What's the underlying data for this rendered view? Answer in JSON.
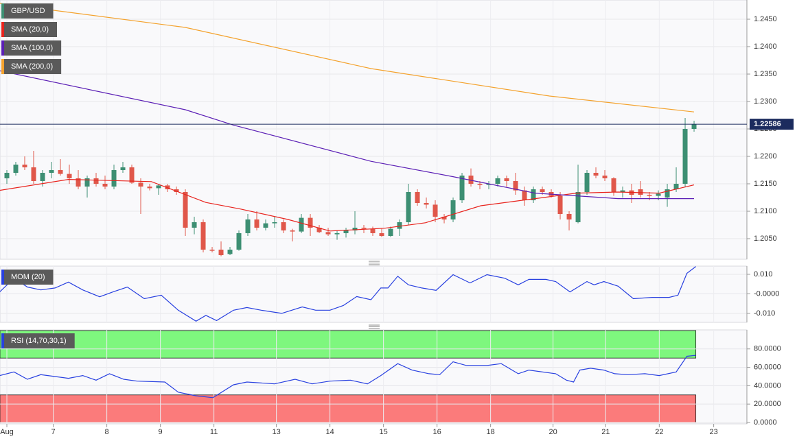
{
  "chart_data": [
    {
      "type": "candlestick",
      "name": "GBP/USD",
      "up_color": "#3d8f73",
      "down_color": "#e0574a",
      "xlim": [
        -0.77,
        82.92
      ],
      "ylim": [
        1.20125,
        1.2485
      ],
      "yticks": [
        {
          "value": 1.205,
          "label": "1.2050"
        },
        {
          "value": 1.21,
          "label": "1.2100"
        },
        {
          "value": 1.215,
          "label": "1.2150"
        },
        {
          "value": 1.22,
          "label": "1.2200"
        },
        {
          "value": 1.225,
          "label": "1.2250"
        },
        {
          "value": 1.23,
          "label": "1.2300"
        },
        {
          "value": 1.235,
          "label": "1.2350"
        },
        {
          "value": 1.24,
          "label": "1.2400"
        },
        {
          "value": 1.245,
          "label": "1.2450"
        }
      ],
      "grid": true,
      "last_price": 1.22586,
      "last_price_color": "#1b2b5e",
      "candles": [
        [
          1.216,
          1.2175,
          1.215,
          1.217
        ],
        [
          1.217,
          1.219,
          1.2165,
          1.2185
        ],
        [
          1.2185,
          1.22,
          1.2175,
          1.218
        ],
        [
          1.218,
          1.221,
          1.215,
          1.2155
        ],
        [
          1.2155,
          1.2175,
          1.2145,
          1.217
        ],
        [
          1.217,
          1.219,
          1.216,
          1.2175
        ],
        [
          1.2175,
          1.2195,
          1.2165,
          1.2168
        ],
        [
          1.2168,
          1.2185,
          1.215,
          1.216
        ],
        [
          1.216,
          1.2175,
          1.214,
          1.2145
        ],
        [
          1.2145,
          1.2165,
          1.2125,
          1.216
        ],
        [
          1.216,
          1.217,
          1.2145,
          1.215
        ],
        [
          1.215,
          1.2165,
          1.214,
          1.2145
        ],
        [
          1.2145,
          1.2185,
          1.214,
          1.2175
        ],
        [
          1.2175,
          1.219,
          1.217,
          1.218
        ],
        [
          1.218,
          1.2185,
          1.215,
          1.2152
        ],
        [
          1.2152,
          1.216,
          1.2095,
          1.2145
        ],
        [
          1.2145,
          1.215,
          1.2138,
          1.2142
        ],
        [
          1.2142,
          1.215,
          1.213,
          1.2147
        ],
        [
          1.2147,
          1.215,
          1.2135,
          1.214
        ],
        [
          1.214,
          1.2145,
          1.213,
          1.2135
        ],
        [
          1.2135,
          1.214,
          1.2055,
          1.207
        ],
        [
          1.207,
          1.209,
          1.2058,
          1.208
        ],
        [
          1.208,
          1.2085,
          1.2025,
          1.203
        ],
        [
          1.203,
          1.2035,
          1.2025,
          1.2028
        ],
        [
          1.203,
          1.2045,
          1.2018,
          1.202
        ],
        [
          1.2022,
          1.2035,
          1.202,
          1.203
        ],
        [
          1.203,
          1.2065,
          1.2028,
          1.206
        ],
        [
          1.206,
          1.2095,
          1.2055,
          1.2085
        ],
        [
          1.2085,
          1.21,
          1.2065,
          1.207
        ],
        [
          1.207,
          1.2085,
          1.2065,
          1.2078
        ],
        [
          1.2078,
          1.209,
          1.207,
          1.208
        ],
        [
          1.208,
          1.2085,
          1.206,
          1.2065
        ],
        [
          1.2065,
          1.2068,
          1.2045,
          1.2063
        ],
        [
          1.2063,
          1.2095,
          1.206,
          1.2088
        ],
        [
          1.2088,
          1.2095,
          1.2055,
          1.207
        ],
        [
          1.207,
          1.2075,
          1.206,
          1.2062
        ],
        [
          1.2062,
          1.207,
          1.2055,
          1.2058
        ],
        [
          1.2058,
          1.2065,
          1.2048,
          1.206
        ],
        [
          1.206,
          1.207,
          1.2052,
          1.2065
        ],
        [
          1.2065,
          1.21,
          1.2058,
          1.207
        ],
        [
          1.207,
          1.2075,
          1.206,
          1.2068
        ],
        [
          1.2068,
          1.2072,
          1.2055,
          1.206
        ],
        [
          1.206,
          1.2068,
          1.2053,
          1.2055
        ],
        [
          1.2055,
          1.2072,
          1.2053,
          1.2068
        ],
        [
          1.2068,
          1.2085,
          1.2055,
          1.208
        ],
        [
          1.208,
          1.215,
          1.2075,
          1.2135
        ],
        [
          1.2135,
          1.214,
          1.211,
          1.2115
        ],
        [
          1.2115,
          1.2125,
          1.2105,
          1.2112
        ],
        [
          1.2112,
          1.212,
          1.208,
          1.209
        ],
        [
          1.209,
          1.2095,
          1.2078,
          1.2085
        ],
        [
          1.2085,
          1.2125,
          1.208,
          1.212
        ],
        [
          1.212,
          1.217,
          1.2115,
          1.2165
        ],
        [
          1.2165,
          1.2178,
          1.2145,
          1.215
        ],
        [
          1.215,
          1.2155,
          1.214,
          1.2148
        ],
        [
          1.2148,
          1.2155,
          1.214,
          1.215
        ],
        [
          1.215,
          1.2165,
          1.2145,
          1.216
        ],
        [
          1.216,
          1.2165,
          1.2145,
          1.2155
        ],
        [
          1.2155,
          1.217,
          1.213,
          1.2138
        ],
        [
          1.2138,
          1.2145,
          1.211,
          1.212
        ],
        [
          1.212,
          1.2145,
          1.2115,
          1.214
        ],
        [
          1.214,
          1.2145,
          1.213,
          1.2135
        ],
        [
          1.2135,
          1.214,
          1.2125,
          1.2128
        ],
        [
          1.2128,
          1.2135,
          1.2085,
          1.2095
        ],
        [
          1.2095,
          1.21,
          1.2065,
          1.2085
        ],
        [
          1.208,
          1.2185,
          1.2078,
          1.2135
        ],
        [
          1.2135,
          1.2175,
          1.213,
          1.217
        ],
        [
          1.217,
          1.218,
          1.216,
          1.2165
        ],
        [
          1.2165,
          1.2175,
          1.2155,
          1.216
        ],
        [
          1.216,
          1.2162,
          1.2128,
          1.2135
        ],
        [
          1.2135,
          1.2145,
          1.2125,
          1.2138
        ],
        [
          1.2138,
          1.215,
          1.2115,
          1.213
        ],
        [
          1.214,
          1.2155,
          1.2125,
          1.213
        ],
        [
          1.213,
          1.2135,
          1.212,
          1.2128
        ],
        [
          1.2128,
          1.2138,
          1.212,
          1.2132
        ],
        [
          1.2125,
          1.215,
          1.2108,
          1.214
        ],
        [
          1.214,
          1.218,
          1.2135,
          1.215
        ],
        [
          1.215,
          1.227,
          1.2145,
          1.225
        ],
        [
          1.225,
          1.2265,
          1.2245,
          1.22586
        ]
      ],
      "series": [
        {
          "name": "SMA (20,0)",
          "color": "#e8231d",
          "x": [
            -0.8,
            6.9,
            16.2,
            22.3,
            26.2,
            31.5,
            36.2,
            42.3,
            46.9,
            53.1,
            59.2,
            63.8,
            68.5,
            73.1,
            77
          ],
          "values": [
            1.2138,
            1.2158,
            1.2154,
            1.2116,
            1.2104,
            1.2085,
            1.2064,
            1.2069,
            1.2079,
            1.211,
            1.2123,
            1.2133,
            1.2135,
            1.2133,
            1.2148
          ]
        },
        {
          "name": "SMA (100,0)",
          "color": "#5b1fb5",
          "x": [
            -0.8,
            20,
            25.4,
            40.8,
            50,
            59.2,
            68.5,
            77
          ],
          "values": [
            1.2356,
            1.2285,
            1.2257,
            1.2191,
            1.2163,
            1.2133,
            1.2123,
            1.2123
          ]
        },
        {
          "name": "SMA (200,0)",
          "color": "#f4a22d",
          "x": [
            -0.8,
            20,
            40.8,
            60.8,
            77
          ],
          "values": [
            1.2479,
            1.2435,
            1.236,
            1.231,
            1.2281
          ]
        }
      ]
    },
    {
      "type": "line",
      "xlim": [
        -0.77,
        82.92
      ],
      "ylim": [
        -0.0146,
        0.0142
      ],
      "yticks": [
        {
          "value": -0.01,
          "label": "-0.010"
        },
        {
          "value": 0,
          "label": "-0.0000"
        },
        {
          "value": 0.01,
          "label": "0.010"
        }
      ],
      "grid": true,
      "series": [
        {
          "name": "MOM (20)",
          "color": "#2840e0",
          "x": [
            -0.8,
            0.8,
            2.3,
            3.8,
            5.4,
            6.9,
            8.5,
            10.4,
            11.9,
            13.5,
            15.4,
            17.3,
            19.2,
            21.2,
            22.3,
            23.5,
            25.4,
            26.9,
            28.5,
            30.8,
            33.1,
            34.6,
            36.2,
            37.7,
            39.2,
            40.8,
            41.9,
            42.7,
            43.8,
            45,
            46.5,
            48.1,
            50,
            51.9,
            53.8,
            55.8,
            57.3,
            58.5,
            60.4,
            61.5,
            63.1,
            65,
            65.8,
            66.9,
            68.5,
            70.2,
            72.3,
            74.2,
            75.2,
            76.2,
            77.2
          ],
          "values": [
            0.001,
            0.008,
            0.0035,
            0.002,
            0.003,
            0.006,
            0.002,
            -0.0015,
            0.001,
            0.0035,
            -0.0025,
            -0.0007,
            -0.0084,
            -0.014,
            -0.011,
            -0.0137,
            -0.0084,
            -0.007,
            -0.0084,
            -0.01,
            -0.0067,
            -0.0084,
            -0.0084,
            -0.006,
            -0.0014,
            -0.003,
            0.003,
            0.003,
            0.009,
            0.0046,
            0.003,
            0.0018,
            0.0098,
            0.0056,
            0.0098,
            0.008,
            0.0046,
            0.0074,
            0.0074,
            0.0063,
            0.001,
            0.0063,
            0.0046,
            0.0063,
            0.0039,
            -0.0025,
            -0.0018,
            -0.0018,
            -0.0007,
            0.0105,
            0.014
          ]
        }
      ]
    },
    {
      "type": "line",
      "xlim": [
        -0.77,
        82.92
      ],
      "ylim": [
        -1.5,
        100.7
      ],
      "yticks": [
        {
          "value": 0,
          "label": "0.0000"
        },
        {
          "value": 20,
          "label": "20.0000"
        },
        {
          "value": 40,
          "label": "40.0000"
        },
        {
          "value": 60,
          "label": "60.0000"
        },
        {
          "value": 80,
          "label": "80.0000"
        }
      ],
      "grid": true,
      "bands": [
        {
          "range": [
            70,
            100
          ],
          "color": "#7ef77e"
        },
        {
          "range": [
            0,
            30
          ],
          "color": "#fb7b7b"
        }
      ],
      "series": [
        {
          "name": "RSI (14,70,30,1)",
          "color": "#2840e0",
          "x": [
            -0.8,
            0.8,
            2.3,
            3.8,
            5.4,
            6.9,
            8.5,
            10,
            11.5,
            13.1,
            14.6,
            17.7,
            19.2,
            21.2,
            23.1,
            25.4,
            26.9,
            30,
            32.3,
            34.2,
            36.2,
            38.5,
            40.4,
            41.9,
            43.8,
            45.4,
            47.3,
            48.5,
            50,
            51.5,
            53.8,
            55.4,
            57.3,
            58.5,
            61.5,
            62.7,
            63.5,
            64.2,
            65.4,
            66.9,
            68.1,
            69.6,
            71.5,
            73.1,
            75,
            76.2,
            77.2
          ],
          "values": [
            51,
            55,
            47,
            52,
            50,
            48,
            51,
            46,
            53,
            47,
            45,
            44,
            33,
            29,
            27,
            41,
            44,
            42,
            47,
            42,
            45,
            46,
            42,
            51,
            64,
            57,
            53,
            52,
            66,
            62,
            62,
            64,
            53,
            57,
            53,
            46,
            44,
            57,
            59,
            57,
            53,
            52,
            53,
            51,
            55,
            72,
            73
          ]
        }
      ],
      "xticks": [
        {
          "value": 0,
          "label": "Aug"
        },
        {
          "value": 5.2,
          "label": "7"
        },
        {
          "value": 11.2,
          "label": "8"
        },
        {
          "value": 17.2,
          "label": "9"
        },
        {
          "value": 23.2,
          "label": "11"
        },
        {
          "value": 30.2,
          "label": "13"
        },
        {
          "value": 36.2,
          "label": "14"
        },
        {
          "value": 42.2,
          "label": "15"
        },
        {
          "value": 48.2,
          "label": "16"
        },
        {
          "value": 54.2,
          "label": "18"
        },
        {
          "value": 61.2,
          "label": "20"
        },
        {
          "value": 67.1,
          "label": "21"
        },
        {
          "value": 73.1,
          "label": "22"
        },
        {
          "value": 79.2,
          "label": "23"
        }
      ]
    }
  ]
}
